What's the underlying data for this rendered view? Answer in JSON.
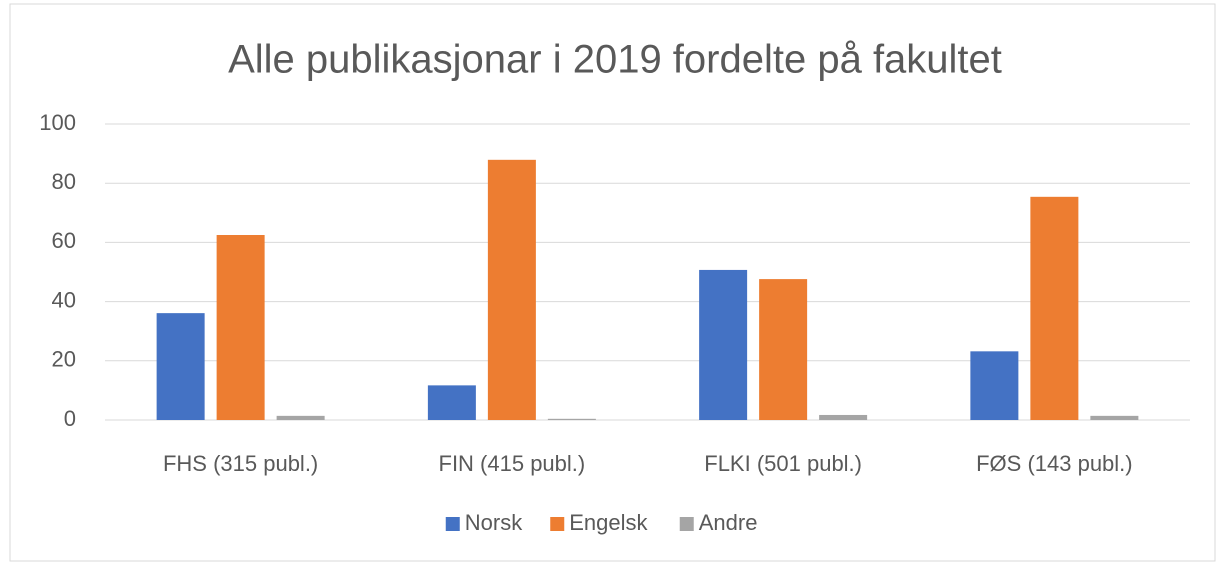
{
  "chart_data": {
    "type": "bar",
    "title": "Alle publikasjonar i 2019 fordelte på fakultet",
    "categories": [
      "FHS (315 publ.)",
      "FIN (415 publ.)",
      "FLKI (501 publ.)",
      "FØS (143 publ.)"
    ],
    "series": [
      {
        "name": "Norsk",
        "color": "#4472c4",
        "values": [
          36.1,
          11.7,
          50.7,
          23.2
        ]
      },
      {
        "name": "Engelsk",
        "color": "#ed7d31",
        "values": [
          62.5,
          87.9,
          47.6,
          75.4
        ]
      },
      {
        "name": "Andre",
        "color": "#a5a5a5",
        "values": [
          1.4,
          0.4,
          1.7,
          1.4
        ]
      }
    ],
    "ylim": [
      0,
      100
    ],
    "yticks": [
      0,
      20,
      40,
      60,
      80,
      100
    ],
    "grid": true,
    "legend": "bottom"
  }
}
